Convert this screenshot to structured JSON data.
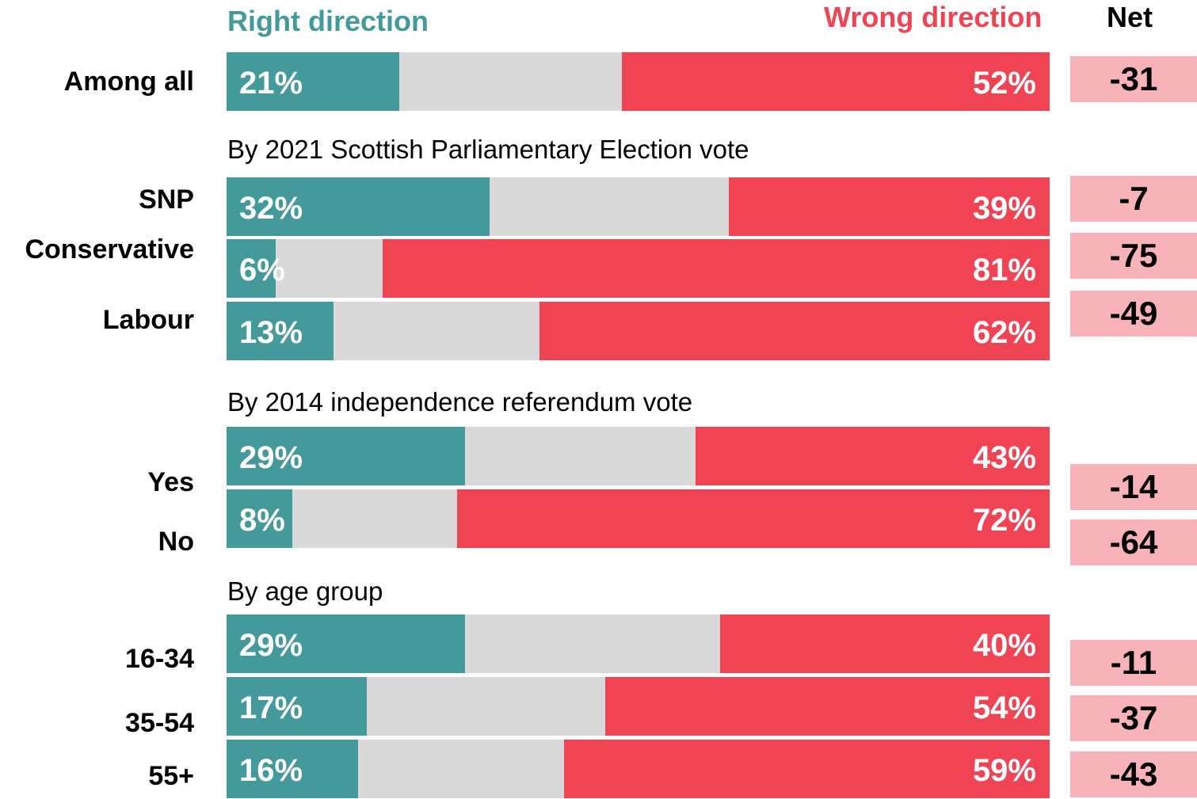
{
  "chart_data": {
    "type": "bar",
    "orientation": "horizontal",
    "stacked": true,
    "legend": [
      {
        "name": "Right direction",
        "color": "#449A9A"
      },
      {
        "name": "Wrong direction",
        "color": "#F04455"
      }
    ],
    "net_header": "Net",
    "colors": {
      "right": "#449A9A",
      "neutral": "#D9D9D9",
      "wrong": "#F04455",
      "net_bg": "#F8B3B9"
    },
    "sections": [
      {
        "title": "",
        "rows": [
          {
            "label": "Among all",
            "right": 21,
            "wrong": 52,
            "right_label": "21%",
            "wrong_label": "52%",
            "net": "-31"
          }
        ]
      },
      {
        "title": "By 2021 Scottish Parliamentary Election vote",
        "rows": [
          {
            "label": "SNP",
            "right": 32,
            "wrong": 39,
            "right_label": "32%",
            "wrong_label": "39%",
            "net": "-7"
          },
          {
            "label": "Conservative",
            "right": 6,
            "wrong": 81,
            "right_label": "6%",
            "wrong_label": "81%",
            "net": "-75"
          },
          {
            "label": "Labour",
            "right": 13,
            "wrong": 62,
            "right_label": "13%",
            "wrong_label": "62%",
            "net": "-49"
          }
        ]
      },
      {
        "title": "By 2014 independence referendum vote",
        "rows": [
          {
            "label": "Yes",
            "right": 29,
            "wrong": 43,
            "right_label": "29%",
            "wrong_label": "43%",
            "net": "-14"
          },
          {
            "label": "No",
            "right": 8,
            "wrong": 72,
            "right_label": "8%",
            "wrong_label": "72%",
            "net": "-64"
          }
        ]
      },
      {
        "title": "By age group",
        "rows": [
          {
            "label": "16-34",
            "right": 29,
            "wrong": 40,
            "right_label": "29%",
            "wrong_label": "40%",
            "net": "-11"
          },
          {
            "label": "35-54",
            "right": 17,
            "wrong": 54,
            "right_label": "17%",
            "wrong_label": "54%",
            "net": "-37"
          },
          {
            "label": "55+",
            "right": 16,
            "wrong": 59,
            "right_label": "16%",
            "wrong_label": "59%",
            "net": "-43"
          }
        ]
      }
    ]
  }
}
